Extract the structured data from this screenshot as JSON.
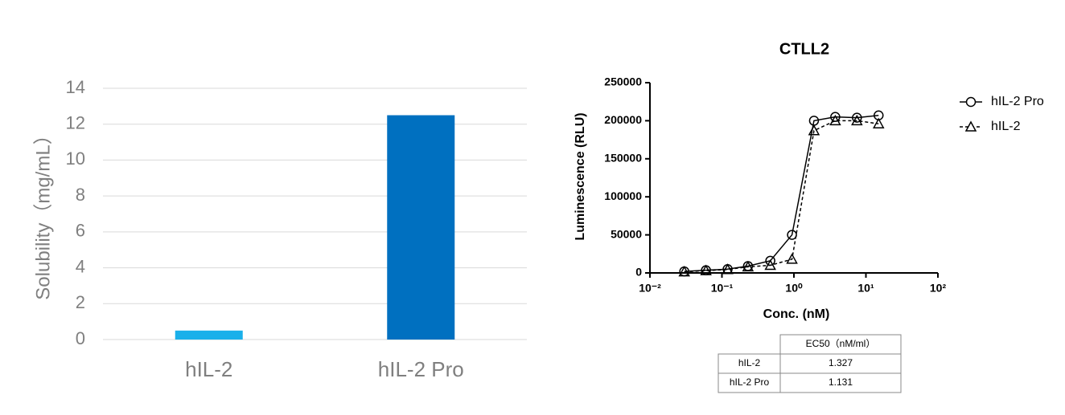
{
  "chart_data": [
    {
      "type": "bar",
      "ylabel": "Solubility（mg/mL）",
      "categories": [
        "hIL-2",
        "hIL-2 Pro"
      ],
      "values": [
        0.5,
        12.5
      ],
      "colors": [
        "#1ab0ea",
        "#0070c0"
      ],
      "ylim": [
        0,
        14
      ],
      "yticks": [
        0,
        2,
        4,
        6,
        8,
        10,
        12,
        14
      ],
      "grid": true
    },
    {
      "type": "line",
      "title": "CTLL2",
      "xlabel": "Conc. (nM)",
      "ylabel": "Luminescence (RLU)",
      "xscale": "log",
      "xlim": [
        0.01,
        100
      ],
      "xticks": [
        {
          "value": 0.01,
          "label": "10⁻²"
        },
        {
          "value": 0.1,
          "label": "10⁻¹"
        },
        {
          "value": 1,
          "label": "10⁰"
        },
        {
          "value": 10,
          "label": "10¹"
        },
        {
          "value": 100,
          "label": "10²"
        }
      ],
      "ylim": [
        0,
        250000
      ],
      "yticks": [
        0,
        50000,
        100000,
        150000,
        200000,
        250000
      ],
      "x": [
        0.03,
        0.06,
        0.12,
        0.23,
        0.47,
        0.94,
        1.9,
        3.75,
        7.5,
        15
      ],
      "series": [
        {
          "name": "hIL-2 Pro",
          "color": "#000000",
          "marker": "circle",
          "linestyle": "solid",
          "values": [
            2000,
            3500,
            5000,
            9000,
            16000,
            50000,
            200000,
            205000,
            204000,
            207000
          ]
        },
        {
          "name": "hIL-2",
          "color": "#000000",
          "marker": "triangle",
          "linestyle": "dashed",
          "values": [
            1500,
            3000,
            4500,
            8000,
            10000,
            18000,
            187000,
            200000,
            200000,
            196000
          ]
        }
      ]
    }
  ],
  "table": {
    "header": [
      "EC50（nM/ml）"
    ],
    "rows": [
      [
        "hIL-2",
        1.327
      ],
      [
        "hIL-2 Pro",
        1.131
      ]
    ]
  }
}
